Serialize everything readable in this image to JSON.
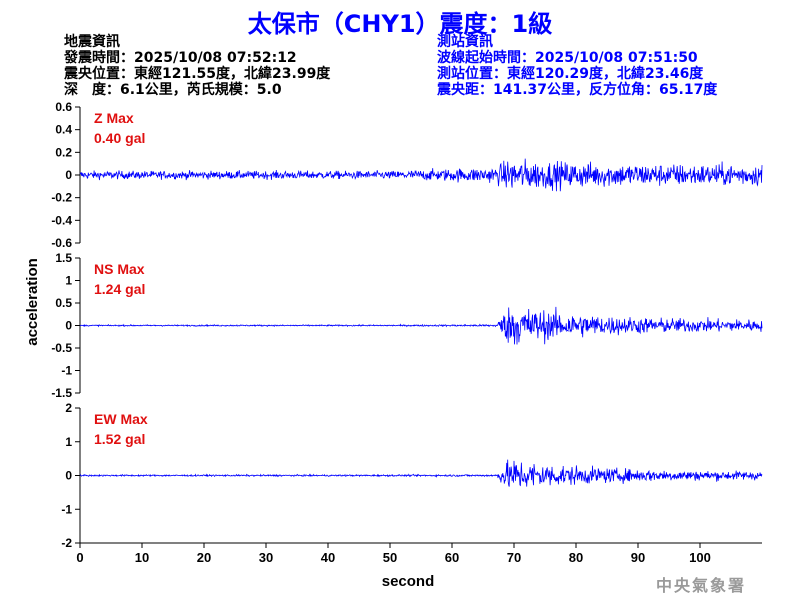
{
  "header": {
    "title": "太保市（CHY1）震度：1級"
  },
  "earthquake_info": {
    "heading": "地震資訊",
    "origin_time": "發震時間：2025/10/08 07:52:12",
    "epicenter": "震央位置：東經121.55度，北緯23.99度",
    "depth_magnitude": "深　度：6.1公里，芮氏規模：5.0"
  },
  "station_info": {
    "heading": "測站資訊",
    "wave_start": "波線起始時間：2025/10/08 07:51:50",
    "station_location": "測站位置：東經120.29度，北緯23.46度",
    "distance_azimuth": "震央距：141.37公里，反方位角：65.17度"
  },
  "colors": {
    "title": "#0000ff",
    "trace": "#0000ff",
    "channel_label": "#e01010",
    "axis": "#000000"
  },
  "logo_text": "中央氣象署",
  "chart_data": {
    "type": "line",
    "xlabel": "second",
    "ylabel": "acceleration",
    "xlim": [
      0,
      110
    ],
    "xticks": [
      "0",
      "10",
      "20",
      "30",
      "40",
      "50",
      "60",
      "70",
      "80",
      "90",
      "100"
    ],
    "p_arrival_s": 67,
    "panels": [
      {
        "name": "Z Max",
        "max_label": "0.40 gal",
        "peak": 0.4,
        "ylim": [
          -0.6,
          0.6
        ],
        "yticks": [
          "0.6",
          "0.4",
          "0.2",
          "0",
          "-0.2",
          "-0.4",
          "-0.6"
        ],
        "envelope": {
          "pre": 0.06,
          "mid": 0.12,
          "post": 0.14,
          "post_decay": 0.25
        }
      },
      {
        "name": "NS Max",
        "max_label": "1.24 gal",
        "peak": 1.24,
        "ylim": [
          -1.5,
          1.5
        ],
        "yticks": [
          "1.5",
          "1",
          "0.5",
          "0",
          "-0.5",
          "-1",
          "-1.5"
        ],
        "envelope": {
          "pre": 0.025,
          "mid": 0.04,
          "post": 0.9,
          "post_decay": 0.18
        }
      },
      {
        "name": "EW Max",
        "max_label": "1.52 gal",
        "peak": 1.52,
        "ylim": [
          -2,
          2
        ],
        "yticks": [
          "2",
          "1",
          "0",
          "-1",
          "-2"
        ],
        "envelope": {
          "pre": 0.04,
          "mid": 0.05,
          "post": 0.95,
          "post_decay": 0.15
        }
      }
    ]
  }
}
